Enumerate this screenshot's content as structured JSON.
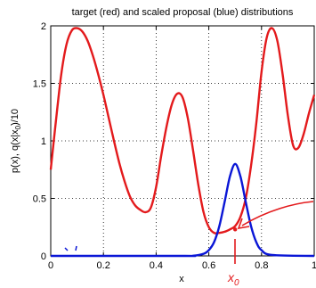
{
  "chart_data": {
    "type": "line",
    "title": "target (red) and scaled proposal (blue) distributions",
    "xlabel": "x",
    "ylabel": "p(x),  q(x|x0)/10",
    "ylabel_parts": {
      "prefix": "p(x),  q(x|x",
      "subscript": "0",
      "suffix": ")/10"
    },
    "xlim": [
      0,
      1
    ],
    "ylim": [
      0,
      2
    ],
    "xticks": [
      "0",
      "0.2",
      "0.4",
      "0.6",
      "0.8",
      "1"
    ],
    "yticks": [
      "0",
      "0.5",
      "1",
      "1.5",
      "2"
    ],
    "grid": true,
    "colors": {
      "target": "#e31a1c",
      "proposal": "#0a16d6",
      "annotation": "#e31a1c"
    },
    "series": [
      {
        "color": "red",
        "x": [
          0,
          0.02,
          0.04,
          0.06,
          0.08,
          0.1,
          0.12,
          0.14,
          0.16,
          0.18,
          0.2,
          0.22,
          0.24,
          0.26,
          0.28,
          0.3,
          0.32,
          0.34,
          0.36,
          0.38,
          0.4,
          0.42,
          0.44,
          0.46,
          0.48,
          0.5,
          0.52,
          0.54,
          0.56,
          0.58,
          0.6,
          0.62,
          0.64,
          0.66,
          0.68,
          0.7,
          0.72,
          0.74,
          0.76,
          0.78,
          0.8,
          0.82,
          0.84,
          0.86,
          0.88,
          0.9,
          0.92,
          0.94,
          0.96,
          0.98,
          1
        ],
        "values": [
          0.75,
          1.18,
          1.58,
          1.84,
          1.96,
          1.98,
          1.95,
          1.87,
          1.74,
          1.58,
          1.4,
          1.2,
          1.0,
          0.81,
          0.65,
          0.52,
          0.44,
          0.4,
          0.38,
          0.42,
          0.6,
          0.88,
          1.13,
          1.32,
          1.41,
          1.38,
          1.2,
          0.92,
          0.62,
          0.38,
          0.25,
          0.2,
          0.2,
          0.21,
          0.23,
          0.26,
          0.34,
          0.5,
          0.78,
          1.15,
          1.6,
          1.9,
          1.98,
          1.87,
          1.58,
          1.22,
          0.96,
          0.94,
          1.06,
          1.24,
          1.4
        ]
      },
      {
        "color": "blue",
        "x": [
          0,
          0.5,
          0.54,
          0.58,
          0.6,
          0.62,
          0.64,
          0.66,
          0.68,
          0.7,
          0.72,
          0.74,
          0.76,
          0.78,
          0.8,
          0.84,
          1
        ],
        "values": [
          0,
          0,
          0.001,
          0.018,
          0.05,
          0.12,
          0.26,
          0.47,
          0.69,
          0.8,
          0.69,
          0.47,
          0.26,
          0.12,
          0.05,
          0.008,
          0
        ]
      }
    ],
    "annotations": [
      {
        "text": "x",
        "subscript": "0",
        "point": [
          0.7,
          0.23
        ],
        "description": "handwritten arrow pointing to the red point labelled x0"
      }
    ]
  }
}
